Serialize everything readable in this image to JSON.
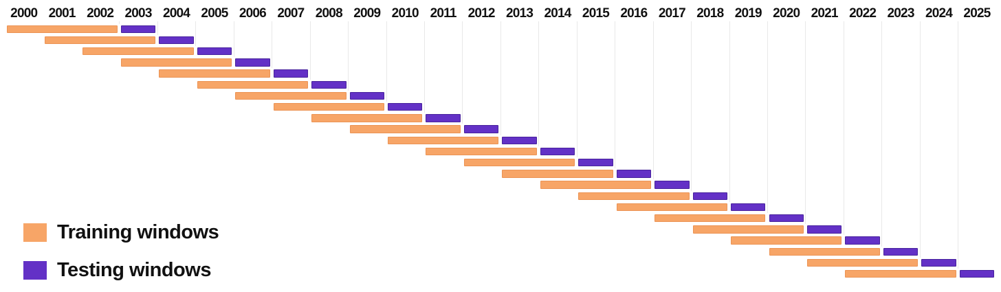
{
  "chart_data": {
    "type": "bar",
    "subtype": "walk-forward-validation-windows",
    "orientation": "horizontal",
    "title": "",
    "xlabel": "",
    "ylabel": "",
    "x_axis": {
      "position": "top",
      "tick_labels": [
        "2000",
        "2001",
        "2002",
        "2003",
        "2004",
        "2005",
        "2006",
        "2007",
        "2008",
        "2009",
        "2010",
        "2011",
        "2012",
        "2013",
        "2014",
        "2015",
        "2016",
        "2017",
        "2018",
        "2019",
        "2020",
        "2021",
        "2022",
        "2023",
        "2024",
        "2025"
      ],
      "range": [
        2000,
        2026
      ]
    },
    "grid": {
      "vertical": true,
      "color": "#e8e8e8"
    },
    "legend_position": "bottom-left",
    "series": [
      {
        "name": "Training windows",
        "color": "#f7a567",
        "window_years": 3
      },
      {
        "name": "Testing windows",
        "color": "#6331c6",
        "window_years": 1
      }
    ],
    "rows": [
      {
        "train_start": 2000,
        "train_end": 2002,
        "test": 2003
      },
      {
        "train_start": 2001,
        "train_end": 2003,
        "test": 2004
      },
      {
        "train_start": 2002,
        "train_end": 2004,
        "test": 2005
      },
      {
        "train_start": 2003,
        "train_end": 2005,
        "test": 2006
      },
      {
        "train_start": 2004,
        "train_end": 2006,
        "test": 2007
      },
      {
        "train_start": 2005,
        "train_end": 2007,
        "test": 2008
      },
      {
        "train_start": 2006,
        "train_end": 2008,
        "test": 2009
      },
      {
        "train_start": 2007,
        "train_end": 2009,
        "test": 2010
      },
      {
        "train_start": 2008,
        "train_end": 2010,
        "test": 2011
      },
      {
        "train_start": 2009,
        "train_end": 2011,
        "test": 2012
      },
      {
        "train_start": 2010,
        "train_end": 2012,
        "test": 2013
      },
      {
        "train_start": 2011,
        "train_end": 2013,
        "test": 2014
      },
      {
        "train_start": 2012,
        "train_end": 2014,
        "test": 2015
      },
      {
        "train_start": 2013,
        "train_end": 2015,
        "test": 2016
      },
      {
        "train_start": 2014,
        "train_end": 2016,
        "test": 2017
      },
      {
        "train_start": 2015,
        "train_end": 2017,
        "test": 2018
      },
      {
        "train_start": 2016,
        "train_end": 2018,
        "test": 2019
      },
      {
        "train_start": 2017,
        "train_end": 2019,
        "test": 2020
      },
      {
        "train_start": 2018,
        "train_end": 2020,
        "test": 2021
      },
      {
        "train_start": 2019,
        "train_end": 2021,
        "test": 2022
      },
      {
        "train_start": 2020,
        "train_end": 2022,
        "test": 2023
      },
      {
        "train_start": 2021,
        "train_end": 2023,
        "test": 2024
      },
      {
        "train_start": 2022,
        "train_end": 2024,
        "test": 2025
      }
    ]
  },
  "legend": {
    "items": [
      {
        "label": "Training windows",
        "color": "#f7a567"
      },
      {
        "label": "Testing windows",
        "color": "#6331c6"
      }
    ]
  },
  "colors": {
    "training_fill": "#f7a567",
    "training_edge": "#eb9354",
    "testing_fill": "#6331c6",
    "testing_edge": "#47229c",
    "gridline": "#e8e8e8",
    "label_text": "#111111",
    "background": "#ffffff"
  }
}
